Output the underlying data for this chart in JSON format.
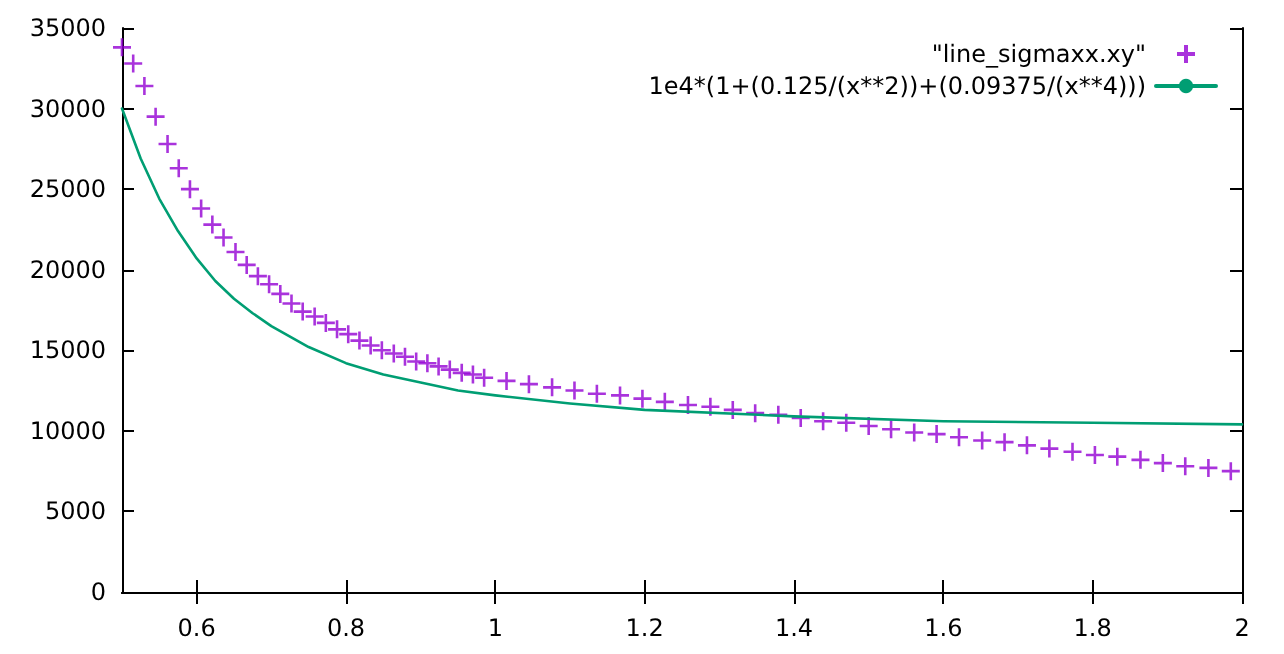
{
  "chart_data": {
    "type": "scatter",
    "xlim": [
      0.5,
      2
    ],
    "xticks": [
      0.6,
      0.8,
      1,
      1.2,
      1.4,
      1.6,
      1.8,
      2
    ],
    "ylim": [
      0,
      35000
    ],
    "yticks": [
      0,
      5000,
      10000,
      15000,
      20000,
      25000,
      30000,
      35000
    ],
    "grid": false,
    "legend": "top right",
    "marker": "cross",
    "series": [
      {
        "name": "\"line_sigmaxx.xy\"",
        "color": "#9400d3",
        "x": [
          0.5,
          0.515,
          0.53,
          0.545,
          0.561,
          0.576,
          0.591,
          0.606,
          0.621,
          0.636,
          0.652,
          0.667,
          0.682,
          0.697,
          0.712,
          0.727,
          0.742,
          0.758,
          0.773,
          0.788,
          0.803,
          0.818,
          0.833,
          0.848,
          0.864,
          0.879,
          0.894,
          0.909,
          0.924,
          0.939,
          0.955,
          0.97,
          0.985,
          1.015,
          1.045,
          1.076,
          1.106,
          1.136,
          1.167,
          1.197,
          1.227,
          1.258,
          1.288,
          1.318,
          1.348,
          1.379,
          1.409,
          1.439,
          1.47,
          1.5,
          1.53,
          1.561,
          1.591,
          1.621,
          1.652,
          1.682,
          1.712,
          1.742,
          1.773,
          1.803,
          1.833,
          1.864,
          1.894,
          1.924,
          1.955,
          1.985
        ],
        "values": [
          33800,
          32800,
          31400,
          29500,
          27800,
          26300,
          25000,
          23800,
          22800,
          22000,
          21100,
          20300,
          19600,
          19100,
          18500,
          17900,
          17400,
          17100,
          16700,
          16300,
          16000,
          15600,
          15300,
          15000,
          14800,
          14600,
          14300,
          14200,
          14000,
          13800,
          13600,
          13500,
          13300,
          13100,
          12900,
          12700,
          12500,
          12300,
          12200,
          12000,
          11800,
          11600,
          11500,
          11300,
          11100,
          11000,
          10800,
          10600,
          10500,
          10300,
          10100,
          9900,
          9800,
          9600,
          9400,
          9300,
          9100,
          8900,
          8700,
          8500,
          8400,
          8200,
          8000,
          7800,
          7700,
          7500
        ]
      },
      {
        "name": "1e4*(1+(0.125/(x**2))+(0.09375/(x**4)))",
        "type": "line",
        "color": "#009e73",
        "marker": "none",
        "x": [
          0.5,
          0.525,
          0.55,
          0.575,
          0.6,
          0.625,
          0.65,
          0.675,
          0.7,
          0.75,
          0.8,
          0.85,
          0.9,
          0.95,
          1,
          1.1,
          1.2,
          1.4,
          1.6,
          1.8,
          2
        ],
        "values": [
          30000,
          26900,
          24400,
          22400,
          20700,
          19300,
          18200,
          17300,
          16500,
          15200,
          14200,
          13500,
          13000,
          12500,
          12200,
          11700,
          11300,
          10900,
          10600,
          10500,
          10400
        ]
      }
    ]
  }
}
